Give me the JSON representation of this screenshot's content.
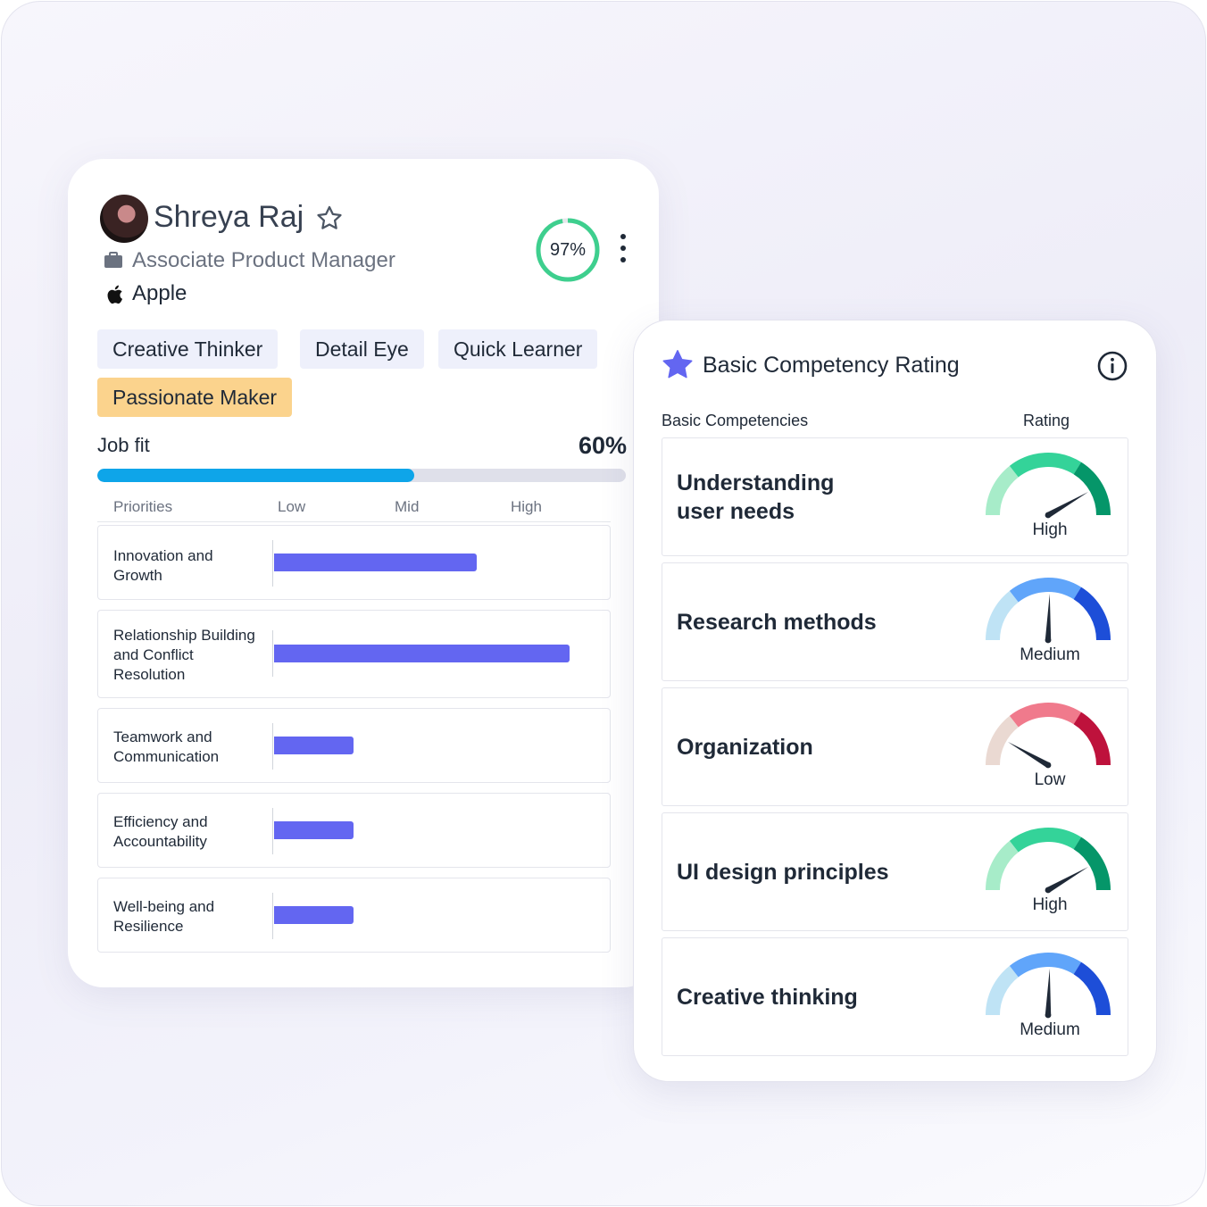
{
  "profile": {
    "name": "Shreya Raj",
    "role": "Associate Product Manager",
    "company": "Apple",
    "score_label": "97%",
    "score_fraction": 0.97,
    "tags": [
      "Creative Thinker",
      "Detail Eye",
      "Quick Learner",
      "Passionate Maker"
    ],
    "job_fit": {
      "label": "Job fit",
      "value_label": "60%",
      "fraction": 0.6
    }
  },
  "priorities": {
    "headers": {
      "priorities": "Priorities",
      "low": "Low",
      "mid": "Mid",
      "high": "High"
    },
    "items": [
      {
        "label": "Innovation and Growth",
        "level": 0.61
      },
      {
        "label": "Relationship Building and Conflict Resolution",
        "level": 0.89
      },
      {
        "label": "Teamwork and Communication",
        "level": 0.24
      },
      {
        "label": "Efficiency and Accountability",
        "level": 0.24
      },
      {
        "label": "Well-being and Resilience",
        "level": 0.24
      }
    ]
  },
  "competency": {
    "title": "Basic Competency Rating",
    "col_competencies": "Basic Competencies",
    "col_rating": "Rating",
    "items": [
      {
        "name": "Understanding user needs",
        "rating": "High"
      },
      {
        "name": "Research methods",
        "rating": "Medium"
      },
      {
        "name": "Organization",
        "rating": "Low"
      },
      {
        "name": "UI design principles",
        "rating": "High"
      },
      {
        "name": "Creative thinking",
        "rating": "Medium"
      }
    ]
  },
  "colors": {
    "accent_blue": "#0ea5e9",
    "bar_indigo": "#6366f1",
    "ring_green": "#3ecf8e",
    "tag_gold": "#fbd38d",
    "high": [
      "#a7ecc9",
      "#34d399",
      "#059669"
    ],
    "medium": [
      "#bfe3f5",
      "#60a5fa",
      "#1d4ed8"
    ],
    "low": [
      "#ead9d2",
      "#f07a8c",
      "#be123c"
    ]
  }
}
